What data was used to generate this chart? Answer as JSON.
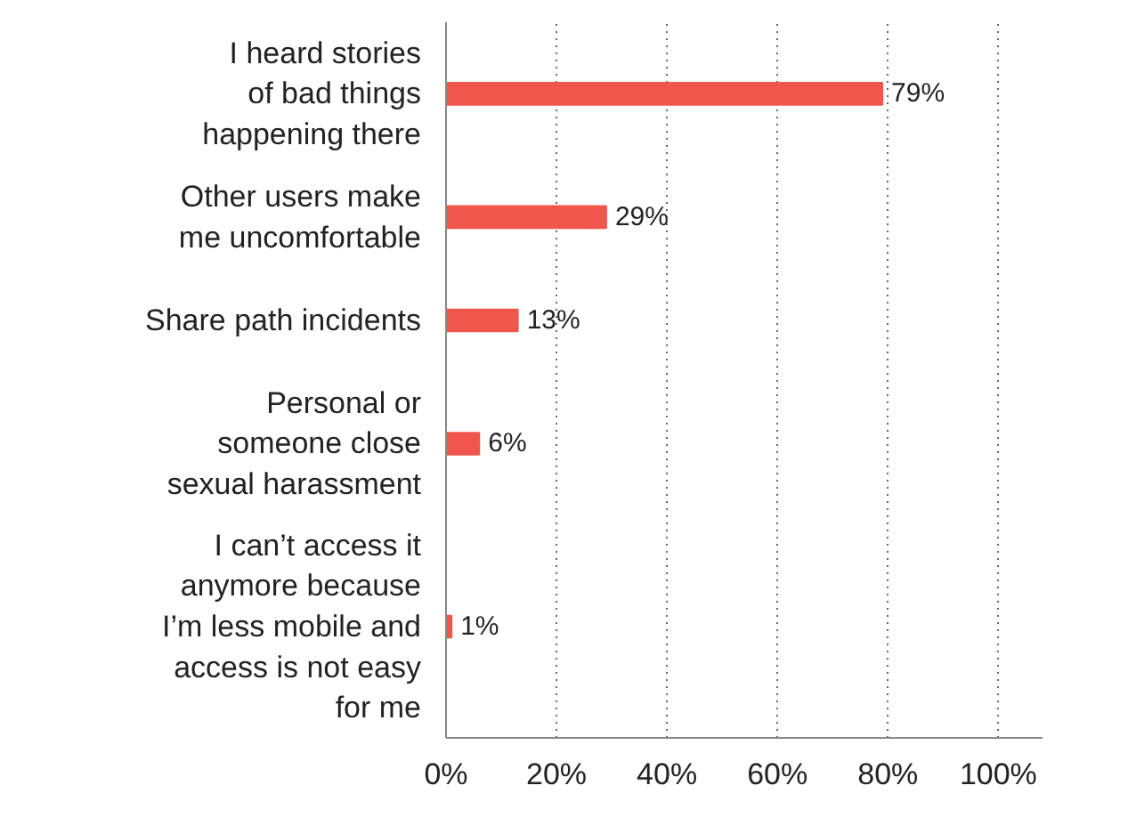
{
  "chart_data": {
    "type": "bar",
    "orientation": "horizontal",
    "categories": [
      "I heard stories\nof bad things\nhappening there",
      "Other users make\nme uncomfortable",
      "Share path incidents",
      "Personal or\nsomeone close\nsexual harassment",
      "I can’t access it\nanymore because\nI’m less mobile and\naccess is not easy\nfor me"
    ],
    "values": [
      79,
      29,
      13,
      6,
      1
    ],
    "value_labels": [
      "79%",
      "29%",
      "13%",
      "6%",
      "1%"
    ],
    "color": "#f0564c",
    "xlim": [
      0,
      108
    ],
    "xticks": [
      {
        "value": 0,
        "label": "0%"
      },
      {
        "value": 20,
        "label": "20%"
      },
      {
        "value": 40,
        "label": "40%"
      },
      {
        "value": 60,
        "label": "60%"
      },
      {
        "value": 80,
        "label": "80%"
      },
      {
        "value": 100,
        "label": "100%"
      }
    ],
    "grid": "x"
  }
}
